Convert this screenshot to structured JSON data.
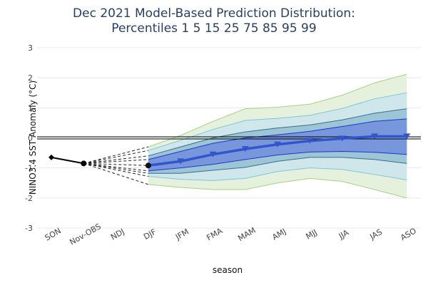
{
  "chart_data": {
    "type": "area",
    "title": [
      "Dec 2021 Model-Based Prediction Distribution:",
      "Percentiles 1 5 15 25 75 85 95 99"
    ],
    "xlabel": "season",
    "ylabel": "NINO3.4 SST Anomaly (°C)",
    "ylim": [
      -3,
      3
    ],
    "yticks": [
      -3,
      -2,
      -1,
      0,
      1,
      2,
      3
    ],
    "categories": [
      "SON",
      "Nov-OBS",
      "NDJ",
      "DJF",
      "JFM",
      "FMA",
      "MAM",
      "AMJ",
      "MJJ",
      "JJA",
      "JAS",
      "ASO"
    ],
    "observed": {
      "name": "observed",
      "x": [
        "SON",
        "Nov-OBS"
      ],
      "values": [
        -0.65,
        -0.85
      ]
    },
    "forecast_x": [
      "DJF",
      "JFM",
      "FMA",
      "MAM",
      "AMJ",
      "MJJ",
      "JJA",
      "JAS",
      "ASO"
    ],
    "percentiles": [
      {
        "name": "p1",
        "values": [
          -1.55,
          -1.65,
          -1.72,
          -1.72,
          -1.5,
          -1.35,
          -1.45,
          -1.72,
          -2.0
        ]
      },
      {
        "name": "p5",
        "values": [
          -1.28,
          -1.38,
          -1.42,
          -1.35,
          -1.12,
          -1.0,
          -1.05,
          -1.22,
          -1.4
        ]
      },
      {
        "name": "p15",
        "values": [
          -1.18,
          -1.18,
          -1.08,
          -0.98,
          -0.78,
          -0.65,
          -0.65,
          -0.72,
          -0.85
        ]
      },
      {
        "name": "p25",
        "values": [
          -1.1,
          -1.0,
          -0.88,
          -0.72,
          -0.57,
          -0.47,
          -0.45,
          -0.48,
          -0.55
        ]
      },
      {
        "name": "p75",
        "values": [
          -0.72,
          -0.45,
          -0.18,
          0.0,
          0.1,
          0.22,
          0.38,
          0.55,
          0.63
        ]
      },
      {
        "name": "p85",
        "values": [
          -0.6,
          -0.3,
          0.0,
          0.2,
          0.33,
          0.43,
          0.6,
          0.82,
          0.97
        ]
      },
      {
        "name": "p95",
        "values": [
          -0.42,
          -0.08,
          0.28,
          0.58,
          0.65,
          0.75,
          0.98,
          1.3,
          1.5
        ]
      },
      {
        "name": "p99",
        "values": [
          -0.3,
          0.08,
          0.55,
          0.97,
          1.02,
          1.12,
          1.42,
          1.83,
          2.12
        ]
      }
    ],
    "median": {
      "name": "median",
      "values": [
        -0.92,
        -0.78,
        -0.55,
        -0.37,
        -0.22,
        -0.1,
        -0.02,
        0.05,
        0.05
      ]
    },
    "fan_lines": {
      "from": {
        "x": "Nov-OBS",
        "y": -0.85
      },
      "to_x": "DJF",
      "to_values": [
        -1.55,
        -1.28,
        -1.18,
        -1.1,
        -0.92,
        -0.72,
        -0.6,
        -0.42,
        -0.3
      ]
    },
    "zero_line": 0,
    "colors": {
      "band_outer": "#e6f1dd",
      "band_outer_edge": "#a6d08a",
      "band_mid": "#cfe6ea",
      "band_mid_edge": "#7cc6d8",
      "band_inner": "#9cc6d6",
      "band_inner_edge": "#3a6e8f",
      "band_core": "#7896dc",
      "band_core_edge": "#2233cc",
      "median": "#3355cc",
      "observed": "#000000",
      "title": "#2a3f5f"
    }
  }
}
